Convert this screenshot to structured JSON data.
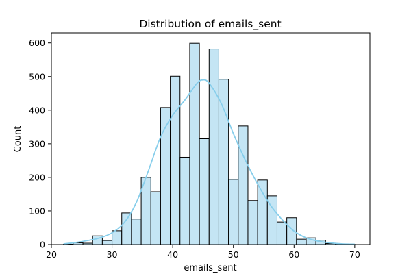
{
  "chart_data": {
    "type": "bar",
    "title": "Distribution of emails_sent",
    "xlabel": "emails_sent",
    "ylabel": "Count",
    "xlim": [
      20,
      72.5
    ],
    "ylim": [
      0,
      630
    ],
    "xticks": [
      "20",
      "30",
      "40",
      "50",
      "60",
      "70"
    ],
    "yticks": [
      "0",
      "100",
      "200",
      "300",
      "400",
      "500",
      "600"
    ],
    "bin_edges": [
      22,
      23.6,
      25.2,
      26.8,
      28.4,
      30,
      31.6,
      33.2,
      34.8,
      36.4,
      38,
      39.6,
      41.2,
      42.8,
      44.4,
      46,
      47.6,
      49.2,
      50.8,
      52.4,
      54,
      55.6,
      57.2,
      58.8,
      60.4,
      62,
      63.6,
      65.2,
      66.8,
      68.4,
      70
    ],
    "counts": [
      1,
      5,
      4,
      26,
      12,
      41,
      94,
      76,
      200,
      157,
      408,
      501,
      260,
      599,
      315,
      582,
      492,
      194,
      353,
      131,
      192,
      145,
      67,
      80,
      16,
      20,
      13,
      3,
      1,
      1
    ],
    "bar_fill": "#c4e5f4",
    "bar_edge": "#000000",
    "kde_color": "#87ceeb",
    "kde": {
      "x": [
        22,
        24,
        26,
        28,
        30,
        32,
        34,
        36,
        38,
        40,
        42,
        44,
        45,
        46,
        48,
        50,
        52,
        54,
        56,
        58,
        60,
        62,
        64,
        66,
        68,
        70
      ],
      "y": [
        2,
        6,
        12,
        20,
        35,
        65,
        125,
        220,
        320,
        385,
        430,
        480,
        490,
        480,
        420,
        330,
        250,
        180,
        120,
        75,
        40,
        20,
        10,
        5,
        2,
        1
      ]
    }
  }
}
